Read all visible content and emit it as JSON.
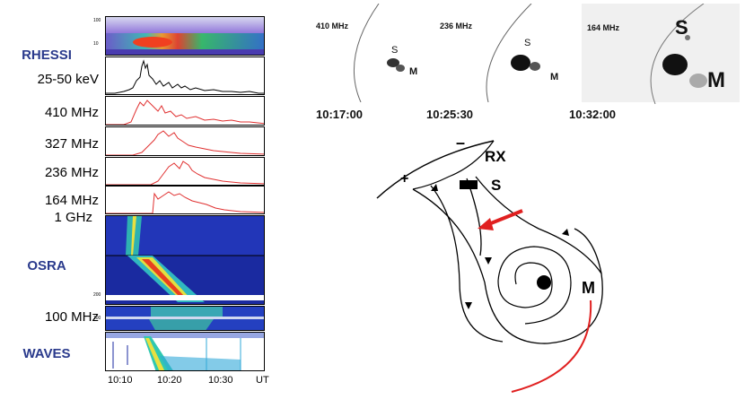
{
  "left_panel": {
    "labels": {
      "rhessi": "RHESSI",
      "energy": "25-50 keV",
      "f410": "410 MHz",
      "f327": "327 MHz",
      "f236": "236 MHz",
      "f164": "164 MHz",
      "ghz": "1 GHz",
      "osra": "OSRA",
      "f100": "100 MHz",
      "waves": "WAVES"
    },
    "x_ticks": [
      "10:10",
      "10:20",
      "10:30"
    ],
    "x_unit": "UT",
    "rhessi_axis": [
      "100",
      "10"
    ],
    "osra_axis": [
      "200",
      "100"
    ],
    "colors": {
      "xray": "#000000",
      "radio": "#e03030",
      "label_blue": "#2a3a8c"
    }
  },
  "radio_images": [
    {
      "freq": "410 MHz",
      "time": "10:17:00",
      "S": "S",
      "M": "M"
    },
    {
      "freq": "236 MHz",
      "time": "10:25:30",
      "S": "S",
      "M": "M"
    },
    {
      "freq": "164 MHz",
      "time": "10:32:00",
      "S": "S",
      "M": "M"
    }
  ],
  "sketch": {
    "minus": "–",
    "plus": "+",
    "rx": "RX",
    "s": "S",
    "m": "M",
    "arrow_color": "#e02020",
    "curve_color": "#e02020"
  }
}
